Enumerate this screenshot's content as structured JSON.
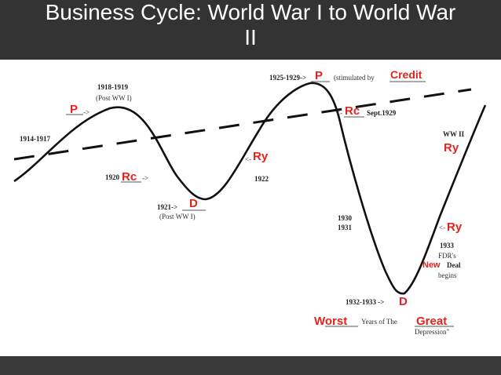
{
  "title": {
    "line1": "Business Cycle: World War I to World War",
    "line2": "II"
  },
  "colors": {
    "red_labels": "#e3231c",
    "curve": "#111111",
    "title_bg": "#333333"
  },
  "printed_labels": {
    "y1914": "1914-1917",
    "y1918": "1918-1919",
    "post_ww1_top": "(Post WW I)",
    "y1920": "1920",
    "y1921": "1921->",
    "post_ww1_bottom": "(Post WW I)",
    "y1922": "1922",
    "y1925": "1925-1929->",
    "stimulated": "(stimulated by",
    "sept1929": "Sept.1929",
    "y1930": "1930",
    "y1931": "1931",
    "ww2": "WW II",
    "y1933": "1933",
    "fdrs": "FDR's",
    "deal": "Deal",
    "begins": "begins",
    "y1932": "1932-1933 ->",
    "years_of_the": "Years of The",
    "depression": "Depression\""
  },
  "red_labels": {
    "p_left": "P",
    "rc_left": "Rc",
    "d_left": "D",
    "ry_left": "Ry",
    "p_top": "P",
    "credit": "Credit",
    "rc_right": "Rc",
    "ry_ww2": "Ry",
    "ry_right": "Ry",
    "new": "New",
    "d_bottom": "D",
    "worst": "Worst",
    "great": "Great"
  }
}
